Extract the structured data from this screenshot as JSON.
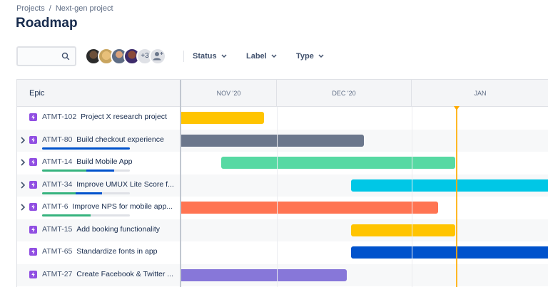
{
  "breadcrumb": {
    "items": [
      "Projects",
      "Next-gen project"
    ],
    "separator": "/"
  },
  "page": {
    "title": "Roadmap"
  },
  "toolbar": {
    "search_placeholder": "",
    "avatars_overflow": "+3",
    "filters": [
      {
        "label": "Status"
      },
      {
        "label": "Label"
      },
      {
        "label": "Type"
      }
    ]
  },
  "roadmap": {
    "epic_header": "Epic",
    "months": [
      "NOV '20",
      "DEC '20",
      "JAN"
    ],
    "rows": [
      {
        "key": "ATMT-102",
        "title": "Project X research project",
        "expandable": false,
        "color": "#ffc400",
        "progress": null
      },
      {
        "key": "ATMT-80",
        "title": "Build checkout experience",
        "expandable": true,
        "color": "#6b778c",
        "progress": {
          "done": 0,
          "in_progress": 1.0
        }
      },
      {
        "key": "ATMT-14",
        "title": "Build Mobile App",
        "expandable": true,
        "color": "#57d9a3",
        "progress": {
          "done": 0.5,
          "in_progress": 0.32
        }
      },
      {
        "key": "ATMT-34",
        "title": "Improve UMUX Lite Score f...",
        "expandable": true,
        "color": "#00c7e6",
        "progress": {
          "done": 0.38,
          "in_progress": 0.3
        }
      },
      {
        "key": "ATMT-6",
        "title": "Improve NPS for mobile app...",
        "expandable": true,
        "color": "#ff7452",
        "progress": {
          "done": 0.55,
          "in_progress": 0
        }
      },
      {
        "key": "ATMT-15",
        "title": "Add booking functionality",
        "expandable": false,
        "color": "#ffc400",
        "progress": null
      },
      {
        "key": "ATMT-65",
        "title": "Standardize fonts in app",
        "expandable": false,
        "color": "#0052cc",
        "progress": null
      },
      {
        "key": "ATMT-27",
        "title": "Create Facebook & Twitter ...",
        "expandable": false,
        "color": "#8777d9",
        "progress": null
      }
    ]
  },
  "colors": {
    "done": "#36b37e",
    "in_progress": "#0052cc",
    "today_marker": "#ffab00",
    "epic_icon": "#904ee2"
  }
}
